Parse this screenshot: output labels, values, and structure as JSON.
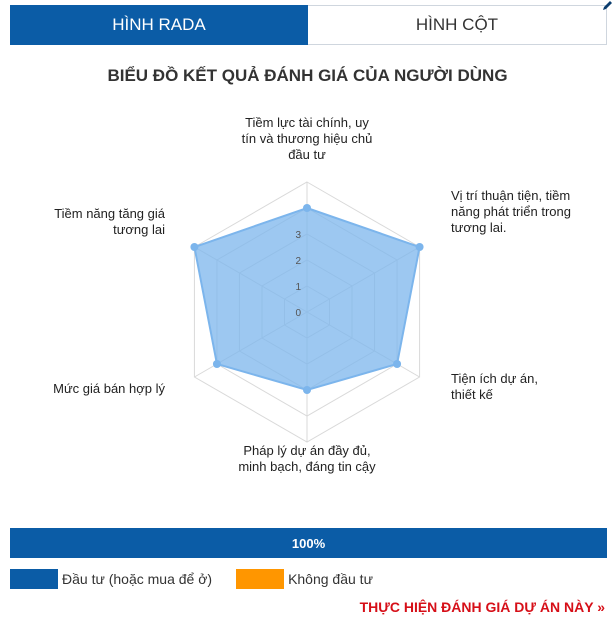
{
  "tabs": [
    {
      "label": "HÌNH RADA",
      "active": true
    },
    {
      "label": "HÌNH CỘT",
      "active": false
    }
  ],
  "chart_data": {
    "type": "radar",
    "title": "BIỂU ĐỒ KẾT QUẢ ĐÁNH GIÁ CỦA NGƯỜI DÙNG",
    "axes": [
      "Tiềm lực tài chính, uy tín và thương hiệu chủ đầu tư",
      "Vị trí thuận tiện, tiềm năng phát triển trong tương lai.",
      "Tiện ích dự án, thiết kế",
      "Pháp lý dự án đầy đủ, minh bạch, đáng tin cậy",
      "Mức giá bán hợp lý",
      "Tiềm năng tăng giá tương lai"
    ],
    "scale_labels": [
      "0",
      "1",
      "2",
      "3"
    ],
    "rlim": [
      0,
      5
    ],
    "series": [
      {
        "values": [
          4,
          5,
          4,
          3,
          4,
          5
        ],
        "color": "#7cb5ec"
      }
    ],
    "grid": true
  },
  "progress": {
    "label": "100%",
    "value": 1.0
  },
  "legend": [
    {
      "label": "Đầu tư (hoặc mua để ở)",
      "color": "#0b5ca6"
    },
    {
      "label": "Không đầu tư",
      "color": "#ff9600"
    }
  ],
  "cta": {
    "label": "THỰC HIỆN ĐÁNH GIÁ DỰ ÁN NÀY »"
  },
  "icons": {
    "corner": "pencil-icon"
  }
}
